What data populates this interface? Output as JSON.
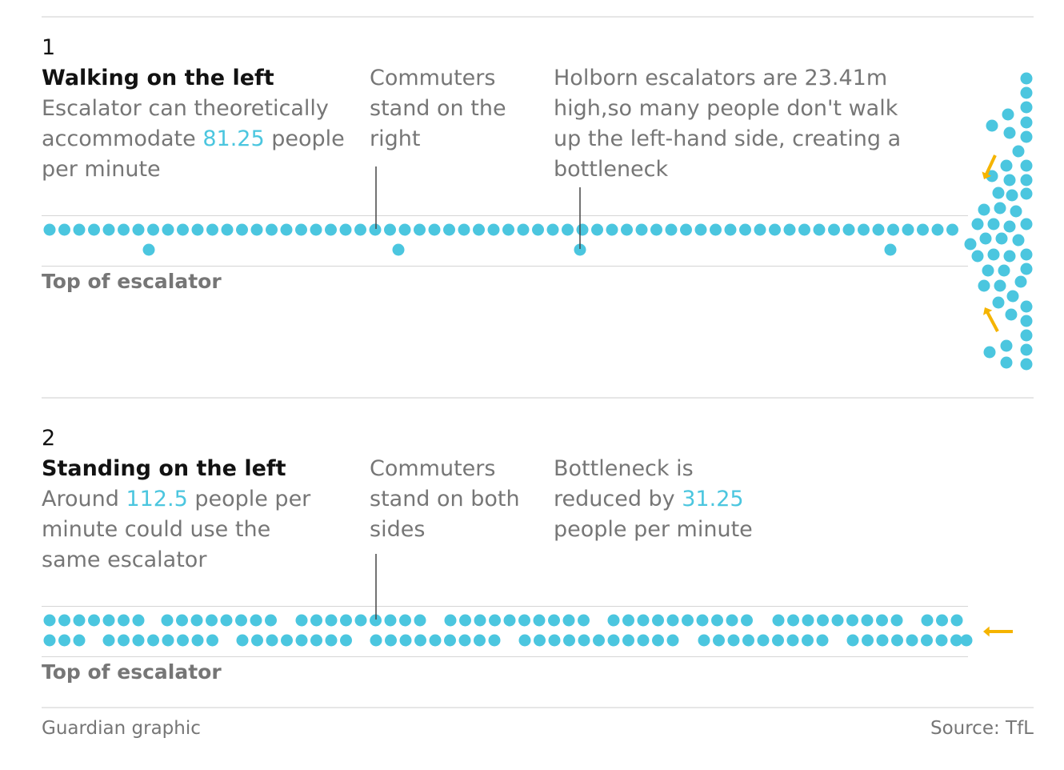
{
  "panel1": {
    "number": "1",
    "title": "Walking on the left",
    "desc_pre": "Escalator can theoretically accommodate ",
    "desc_value": "81.25",
    "desc_post": " people per minute",
    "note_commuters": "Commuters stand on the right",
    "note_holborn": "Holborn escalators are 23.41m high,so many people don't walk up the left-hand side, creating a bottleneck",
    "top_label": "Top of escalator"
  },
  "panel2": {
    "number": "2",
    "title": "Standing on the left",
    "desc_pre": "Around ",
    "desc_value": "112.5",
    "desc_post": " people per minute could use the same escalator",
    "note_commuters": "Commuters stand on both sides",
    "note_bottleneck_pre": "Bottleneck is reduced by ",
    "note_bottleneck_value": "31.25",
    "note_bottleneck_post": " people per minute",
    "top_label": "Top of escalator"
  },
  "footer": {
    "credit": "Guardian graphic",
    "source": "Source: TfL"
  },
  "colors": {
    "dot": "#4bc6df",
    "arrow": "#f5b400",
    "title": "#121212",
    "text": "#767676"
  }
}
